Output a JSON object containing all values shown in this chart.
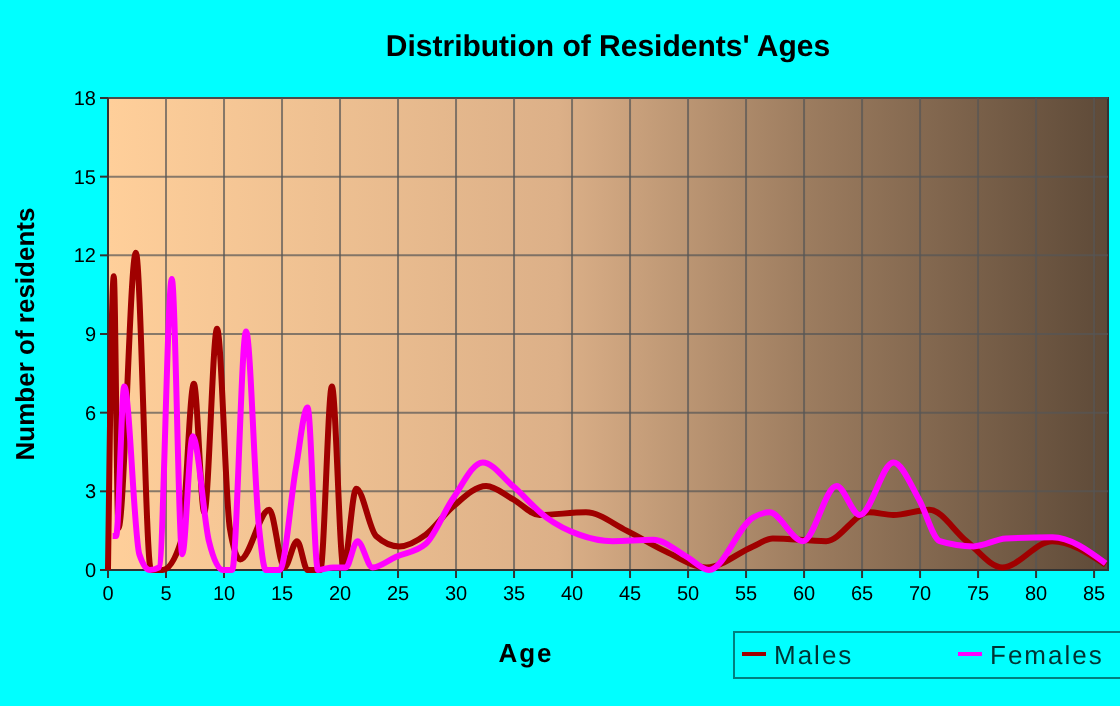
{
  "chart_data": {
    "type": "line",
    "title": "Distribution of Residents' Ages",
    "xlabel": "Age",
    "ylabel": "Number of residents",
    "xlim": [
      0,
      86.2
    ],
    "xticks": [
      0,
      5,
      10,
      15,
      20,
      25,
      30,
      35,
      40,
      45,
      50,
      55,
      60,
      65,
      70,
      75,
      80,
      85
    ],
    "ylim": [
      0,
      18
    ],
    "yticks": [
      0,
      3,
      6,
      9,
      12,
      15,
      18
    ],
    "grid": true,
    "legend": "bottom right",
    "series": [
      {
        "name": "Males",
        "color": "#a00000",
        "x": [
          0,
          0.5,
          0.9,
          2.4,
          3.7,
          4.7,
          6.3,
          7.4,
          8.3,
          9.4,
          10.5,
          11.4,
          13.9,
          15.2,
          16.3,
          17.2,
          18.3,
          19.3,
          20.3,
          21.4,
          23.1,
          25.1,
          27.4,
          29.7,
          32.6,
          34.9,
          37.2,
          41.2,
          44.7,
          48.1,
          51.6,
          55.6,
          57.3,
          61.9,
          65.6,
          67.7,
          70.8,
          74.0,
          77.1,
          81.4,
          86.0
        ],
        "values": [
          0,
          11.2,
          1.6,
          12.1,
          0,
          0,
          1.1,
          7.1,
          2.2,
          9.2,
          1.6,
          0.4,
          2.3,
          0.1,
          1.1,
          0,
          0,
          7.0,
          0.1,
          3.1,
          1.3,
          0.9,
          1.35,
          2.4,
          3.2,
          2.7,
          2.1,
          2.2,
          1.5,
          0.7,
          0.1,
          0.9,
          1.2,
          1.1,
          2.2,
          2.1,
          2.3,
          1.1,
          0.1,
          1.1,
          0.2
        ]
      },
      {
        "name": "Females",
        "color": "#ff00ff",
        "x": [
          0.4,
          0.7,
          1.4,
          2.7,
          3.6,
          4.4,
          5.5,
          6.4,
          7.3,
          8.7,
          9.9,
          10.7,
          11.9,
          13.0,
          13.6,
          14.8,
          16.2,
          17.2,
          18.1,
          19.4,
          20.5,
          21.5,
          22.8,
          24.8,
          27.4,
          29.7,
          32.3,
          34.9,
          37.8,
          40.6,
          43.5,
          47.0,
          49.9,
          51.8,
          55.6,
          57.0,
          59.9,
          62.8,
          64.8,
          67.7,
          69.9,
          71.7,
          74.6,
          77.4,
          81.4,
          86.0
        ],
        "values": [
          1.3,
          1.3,
          7.0,
          0.6,
          0,
          0.1,
          11.1,
          0.6,
          5.1,
          1.1,
          0,
          0,
          9.1,
          1.7,
          0,
          0,
          3.9,
          6.2,
          0,
          0.1,
          0.1,
          1.1,
          0.1,
          0.5,
          1.0,
          2.7,
          4.1,
          3.2,
          2.0,
          1.35,
          1.1,
          1.15,
          0.5,
          0,
          2.0,
          2.2,
          1.1,
          3.2,
          2.1,
          4.1,
          2.7,
          1.1,
          0.9,
          1.2,
          1.25,
          0.25
        ]
      }
    ]
  }
}
